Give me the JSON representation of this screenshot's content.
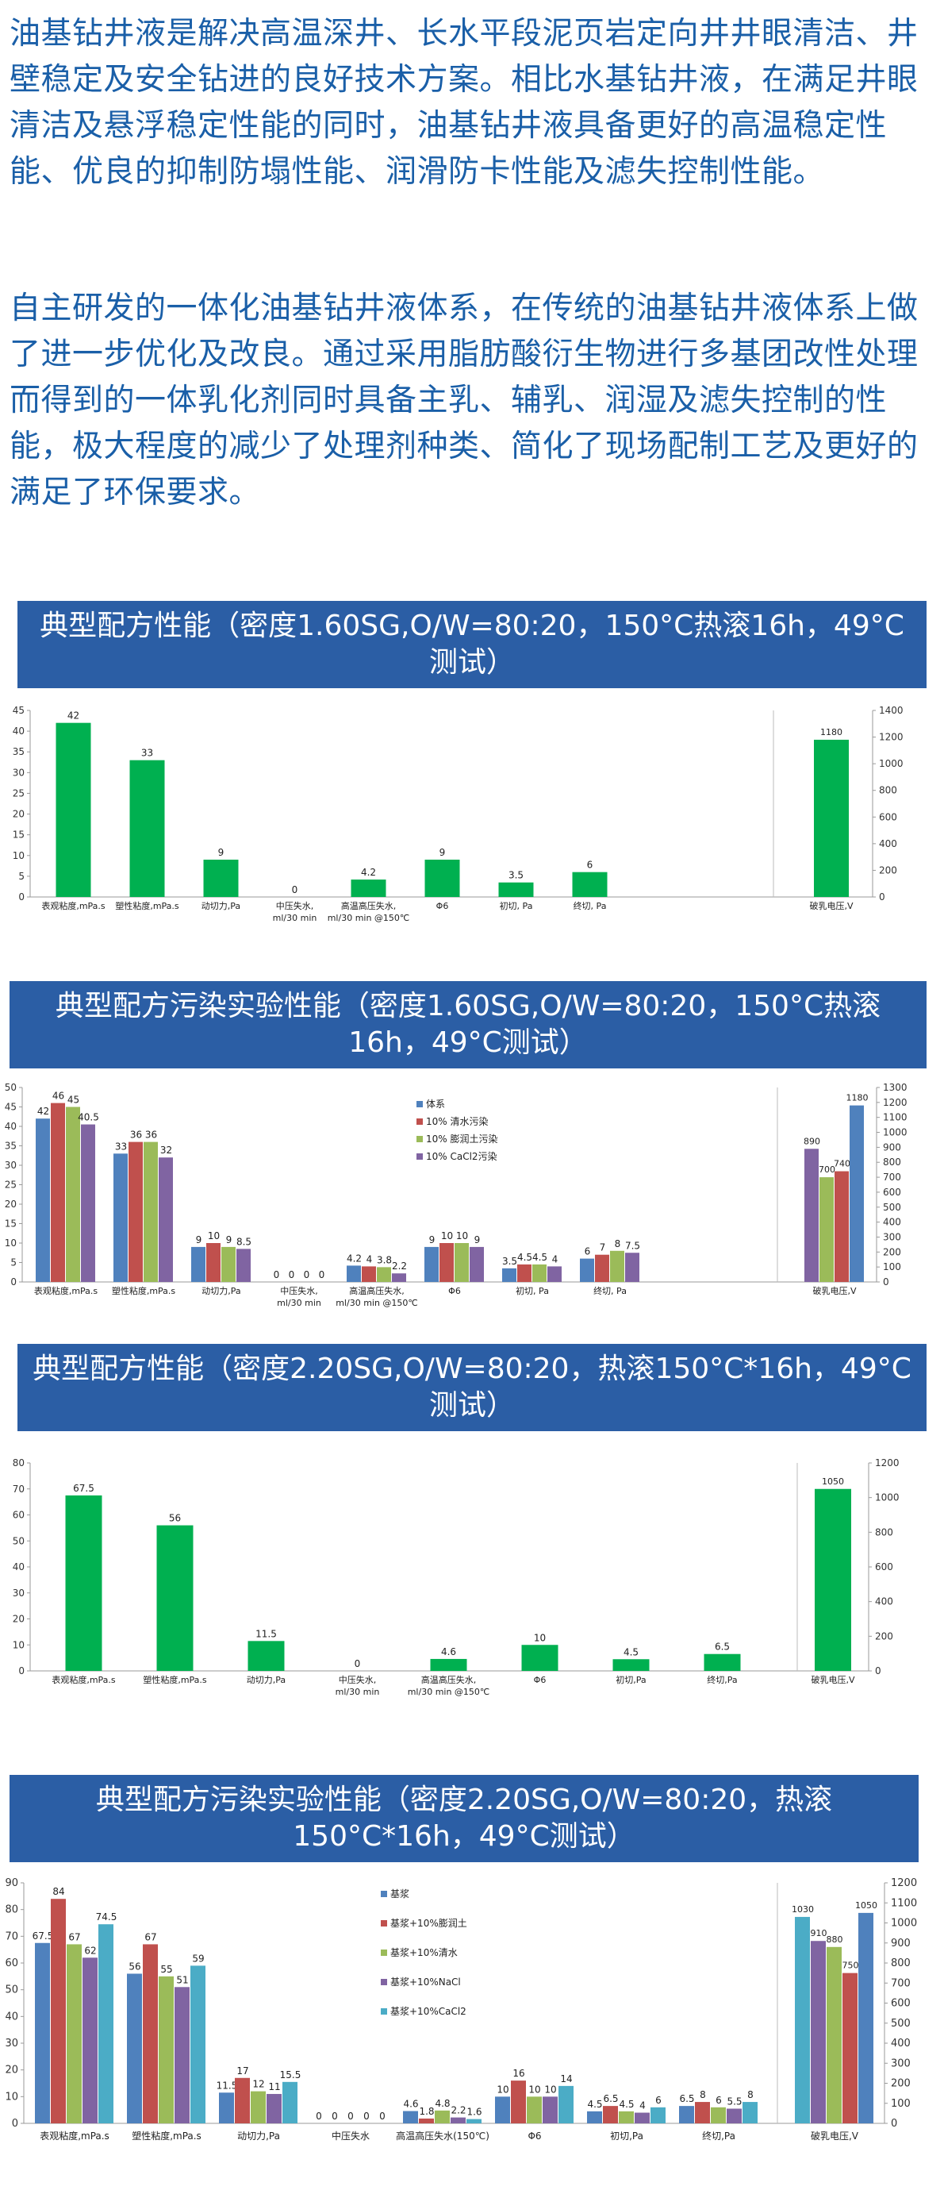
{
  "intro": {
    "p1": "油基钻井液是解决高温深井、长水平段泥页岩定向井井眼清洁、井壁稳定及安全钻进的良好技术方案。相比水基钻井液，在满足井眼清洁及悬浮稳定性能的同时，油基钻井液具备更好的高温稳定性能、优良的抑制防塌性能、润滑防卡性能及滤失控制性能。",
    "p2": "自主研发的一体化油基钻井液体系，在传统的油基钻井液体系上做了进一步优化及改良。通过采用脂肪酸衍生物进行多基团改性处理而得到的一体乳化剂同时具备主乳、辅乳、润湿及滤失控制的性能，极大程度的减少了处理剂种类、简化了现场配制工艺及更好的满足了环保要求。"
  },
  "banners": [
    "典型配方性能（密度1.60SG,O/W=80:20，150°C热滚16h，49°C测试）",
    "典型配方污染实验性能（密度1.60SG,O/W=80:20，150°C热滚16h，49°C测试）",
    "典型配方性能（密度2.20SG,O/W=80:20，热滚150°C*16h，49°C测试）",
    "典型配方污染实验性能（密度2.20SG,O/W=80:20，热滚150°C*16h，49°C测试）"
  ],
  "colors": {
    "green": "#00b050",
    "blue": "#4f81bd",
    "red": "#c0504d",
    "lightgreen": "#9bbb59",
    "purple": "#8064a2",
    "cyan": "#4bacc6",
    "banner": "#2b5ea5",
    "intro_text": "#1a5fa8"
  },
  "chart_data": [
    {
      "type": "bar",
      "categories": [
        "表观粘度,mPa.s",
        "塑性粘度,mPa.s",
        "动切力,Pa",
        "中压失水, ml/30 min",
        "高温高压失水, ml/30 min @150℃",
        "Φ6",
        "初切, Pa",
        "终切, Pa"
      ],
      "secondary_category": "破乳电压,V",
      "series": [
        {
          "color": "#00b050",
          "values": [
            42,
            33,
            9,
            0,
            4.2,
            9,
            3.5,
            6
          ],
          "secondary_value": 1180
        }
      ],
      "ylim": [
        0,
        45
      ],
      "yticks": [
        0,
        5,
        10,
        15,
        20,
        25,
        30,
        35,
        40,
        45
      ],
      "y2lim": [
        0,
        1400
      ],
      "y2ticks": [
        0,
        200,
        400,
        600,
        800,
        1000,
        1200,
        1400
      ]
    },
    {
      "type": "bar",
      "categories": [
        "表观粘度,mPa.s",
        "塑性粘度,mPa.s",
        "动切力,Pa",
        "中压失水, ml/30 min",
        "高温高压失水, ml/30 min @150℃",
        "Φ6",
        "初切, Pa",
        "终切, Pa"
      ],
      "secondary_category": "破乳电压,V",
      "series": [
        {
          "name": "体系",
          "color": "#4f81bd",
          "values": [
            42,
            33,
            9,
            0,
            4.2,
            9,
            3.5,
            6
          ],
          "secondary_value": 1180
        },
        {
          "name": "10% 清水污染",
          "color": "#c0504d",
          "values": [
            46,
            36,
            10,
            0,
            4,
            10,
            4.5,
            7
          ],
          "secondary_value": 740
        },
        {
          "name": "10% 膨润土污染",
          "color": "#9bbb59",
          "values": [
            45,
            36,
            9,
            0,
            3.8,
            10,
            4.5,
            8
          ],
          "secondary_value": 700
        },
        {
          "name": "10% CaCl2污染",
          "color": "#8064a2",
          "values": [
            40.5,
            32,
            8.5,
            0,
            2.2,
            9,
            4,
            7.5
          ],
          "secondary_value": 890
        }
      ],
      "secondary_order": [
        3,
        2,
        1,
        0
      ],
      "ylim": [
        0,
        50
      ],
      "yticks": [
        0,
        5,
        10,
        15,
        20,
        25,
        30,
        35,
        40,
        45,
        50
      ],
      "y2lim": [
        0,
        1300
      ],
      "y2ticks": [
        0,
        100,
        200,
        300,
        400,
        500,
        600,
        700,
        800,
        900,
        1000,
        1100,
        1200,
        1300
      ],
      "legend": "top-center"
    },
    {
      "type": "bar",
      "categories": [
        "表观粘度,mPa.s",
        "塑性粘度,mPa.s",
        "动切力,Pa",
        "中压失水,ml/30 min",
        "高温高压失水,ml/30 min @150℃",
        "Φ6",
        "初切,Pa",
        "终切,Pa"
      ],
      "secondary_category": "破乳电压,V",
      "series": [
        {
          "color": "#00b050",
          "values": [
            67.5,
            56,
            11.5,
            0,
            4.6,
            10,
            4.5,
            6.5
          ],
          "secondary_value": 1050
        }
      ],
      "ylim": [
        0,
        80
      ],
      "yticks": [
        0,
        10,
        20,
        30,
        40,
        50,
        60,
        70,
        80
      ],
      "y2lim": [
        0,
        1200
      ],
      "y2ticks": [
        0,
        200,
        400,
        600,
        800,
        1000,
        1200
      ]
    },
    {
      "type": "bar",
      "categories": [
        "表观粘度,mPa.s",
        "塑性粘度,mPa.s",
        "动切力,Pa",
        "中压失水",
        "高温高压失水(150℃)",
        "Φ6",
        "初切,Pa",
        "终切,Pa"
      ],
      "secondary_category": "破乳电压,V",
      "series": [
        {
          "name": "基浆",
          "color": "#4f81bd",
          "values": [
            67.5,
            56,
            11.5,
            0,
            4.6,
            10,
            4.5,
            6.5
          ],
          "secondary_value": 1050
        },
        {
          "name": "基浆+10%膨润土",
          "color": "#c0504d",
          "values": [
            84,
            67,
            17,
            0,
            1.8,
            16,
            6.5,
            8
          ],
          "secondary_value": 750
        },
        {
          "name": "基浆+10%清水",
          "color": "#9bbb59",
          "values": [
            67,
            55,
            12,
            0,
            4.8,
            10,
            4.5,
            6
          ],
          "secondary_value": 880
        },
        {
          "name": "基浆+10%NaCl",
          "color": "#8064a2",
          "values": [
            62,
            51,
            11,
            0,
            2.2,
            10,
            4,
            5.5
          ],
          "secondary_value": 910
        },
        {
          "name": "基浆+10%CaCl2",
          "color": "#4bacc6",
          "values": [
            74.5,
            59,
            15.5,
            0,
            1.6,
            14,
            6,
            8
          ],
          "secondary_value": 1030
        }
      ],
      "secondary_order": [
        4,
        3,
        2,
        1,
        0
      ],
      "ylim": [
        0,
        90
      ],
      "yticks": [
        0,
        10,
        20,
        30,
        40,
        50,
        60,
        70,
        80,
        90
      ],
      "y2lim": [
        0,
        1200
      ],
      "y2ticks": [
        0,
        100,
        200,
        300,
        400,
        500,
        600,
        700,
        800,
        900,
        1000,
        1100,
        1200
      ],
      "legend": "top-center"
    }
  ]
}
